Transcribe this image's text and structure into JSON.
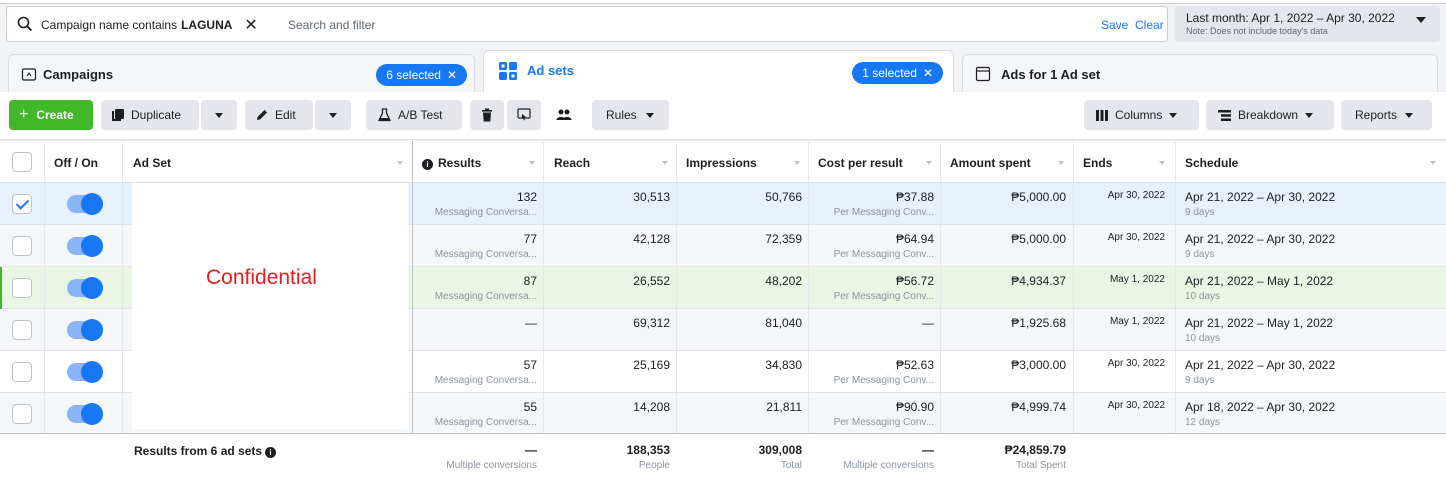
{
  "filter": {
    "chip_prefix": "Campaign name contains",
    "chip_value": "LAGUNA",
    "search_placeholder": "Search and filter",
    "save_label": "Save",
    "clear_label": "Clear"
  },
  "date_range": {
    "label": "Last month: Apr 1, 2022 – Apr 30, 2022",
    "note": "Note: Does not include today's data"
  },
  "tabs": {
    "campaigns": {
      "label": "Campaigns",
      "badge": "6 selected"
    },
    "adsets": {
      "label": "Ad sets",
      "badge": "1 selected"
    },
    "ads": {
      "label": "Ads for 1 Ad set"
    }
  },
  "toolbar": {
    "create": "Create",
    "duplicate": "Duplicate",
    "edit": "Edit",
    "ab_test": "A/B Test",
    "rules": "Rules",
    "columns": "Columns",
    "breakdown": "Breakdown",
    "reports": "Reports"
  },
  "columns": {
    "off_on": "Off / On",
    "ad_set": "Ad Set",
    "results": "Results",
    "reach": "Reach",
    "impressions": "Impressions",
    "cost_per_result": "Cost per result",
    "amount_spent": "Amount spent",
    "ends": "Ends",
    "schedule": "Schedule"
  },
  "rows": [
    {
      "checked": true,
      "results": "132",
      "results_sub": "Messaging Conversa...",
      "reach": "30,513",
      "impressions": "50,766",
      "cpr": "₱37.88",
      "cpr_sub": "Per Messaging Conv...",
      "spent": "₱5,000.00",
      "ends": "Apr 30, 2022",
      "schedule": "Apr 21, 2022 – Apr 30, 2022",
      "days": "9 days"
    },
    {
      "checked": false,
      "results": "77",
      "results_sub": "Messaging Conversa...",
      "reach": "42,128",
      "impressions": "72,359",
      "cpr": "₱64.94",
      "cpr_sub": "Per Messaging Conv...",
      "spent": "₱5,000.00",
      "ends": "Apr 30, 2022",
      "schedule": "Apr 21, 2022 – Apr 30, 2022",
      "days": "9 days"
    },
    {
      "checked": false,
      "results": "87",
      "results_sub": "Messaging Conversa...",
      "reach": "26,552",
      "impressions": "48,202",
      "cpr": "₱56.72",
      "cpr_sub": "Per Messaging Conv...",
      "spent": "₱4,934.37",
      "ends": "May 1, 2022",
      "schedule": "Apr 21, 2022 – May 1, 2022",
      "days": "10 days"
    },
    {
      "checked": false,
      "results": "—",
      "results_sub": "",
      "reach": "69,312",
      "impressions": "81,040",
      "cpr": "—",
      "cpr_sub": "",
      "spent": "₱1,925.68",
      "ends": "May 1, 2022",
      "schedule": "Apr 21, 2022 – May 1, 2022",
      "days": "10 days"
    },
    {
      "checked": false,
      "results": "57",
      "results_sub": "Messaging Conversa...",
      "reach": "25,169",
      "impressions": "34,830",
      "cpr": "₱52.63",
      "cpr_sub": "Per Messaging Conv...",
      "spent": "₱3,000.00",
      "ends": "Apr 30, 2022",
      "schedule": "Apr 21, 2022 – Apr 30, 2022",
      "days": "9 days"
    },
    {
      "checked": false,
      "results": "55",
      "results_sub": "Messaging Conversa...",
      "reach": "14,208",
      "impressions": "21,811",
      "cpr": "₱90.90",
      "cpr_sub": "Per Messaging Conv...",
      "spent": "₱4,999.74",
      "ends": "Apr 30, 2022",
      "schedule": "Apr 18, 2022 – Apr 30, 2022",
      "days": "12 days"
    }
  ],
  "confidential_label": "Confidential",
  "summary": {
    "label": "Results from 6 ad sets",
    "results": "—",
    "results_sub": "Multiple conversions",
    "reach": "188,353",
    "reach_sub": "People",
    "impressions": "309,008",
    "impressions_sub": "Total",
    "cpr": "—",
    "cpr_sub": "Multiple conversions",
    "spent": "₱24,859.79",
    "spent_sub": "Total Spent"
  }
}
